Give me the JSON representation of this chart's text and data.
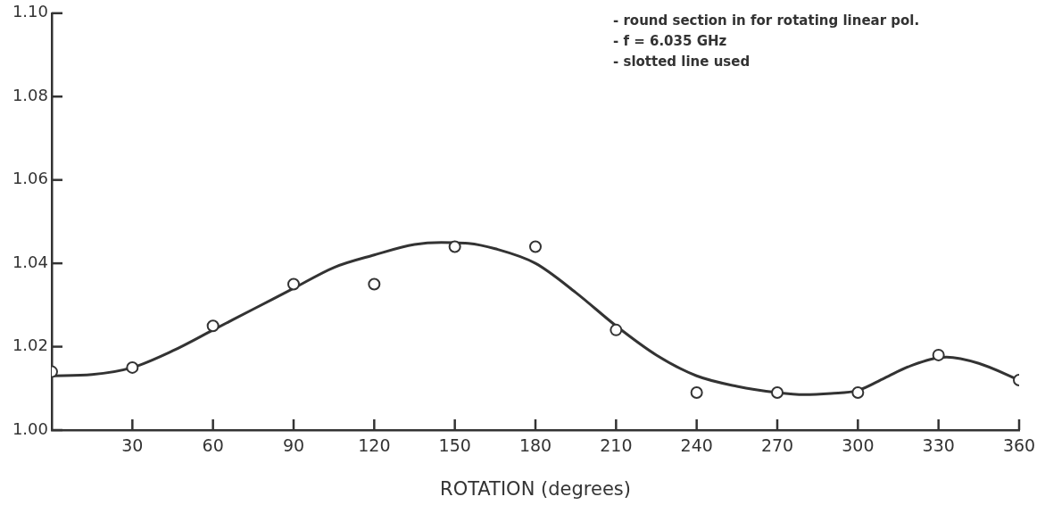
{
  "chart_data": {
    "type": "scatter",
    "xlabel": "ROTATION (degrees)",
    "annotations": [
      "- round section in for rotating linear pol.",
      "- f = 6.035 GHz",
      "- slotted line used"
    ],
    "xlim": [
      0,
      360
    ],
    "xticks": [
      30,
      60,
      90,
      120,
      150,
      180,
      210,
      240,
      270,
      300,
      330,
      360
    ],
    "ylim": [
      1.0,
      1.1
    ],
    "yticks": [
      {
        "value": 1.0,
        "label": "1.00"
      },
      {
        "value": 1.02,
        "label": "1.02"
      },
      {
        "value": 1.04,
        "label": "1.04"
      },
      {
        "value": 1.06,
        "label": "1.06"
      },
      {
        "value": 1.08,
        "label": "1.08"
      },
      {
        "value": 1.1,
        "label": "1.10"
      }
    ],
    "grid": false,
    "legend": false,
    "series": [
      {
        "type": "scatter",
        "marker": "circle",
        "color": "#333333",
        "x": [
          0,
          30,
          60,
          90,
          120,
          150,
          180,
          210,
          240,
          270,
          300,
          330,
          360
        ],
        "values": [
          1.014,
          1.015,
          1.025,
          1.035,
          1.035,
          1.044,
          1.044,
          1.024,
          1.009,
          1.009,
          1.009,
          1.018,
          1.012
        ]
      },
      {
        "type": "line",
        "marker": "none",
        "line_style": "solid",
        "color": "#333333",
        "x": [
          0,
          15,
          30,
          45,
          60,
          75,
          90,
          105,
          120,
          135,
          145,
          155,
          165,
          180,
          195,
          210,
          225,
          240,
          255,
          270,
          280,
          290,
          300,
          310,
          320,
          333,
          345,
          360
        ],
        "values": [
          1.013,
          1.0133,
          1.015,
          1.019,
          1.024,
          1.029,
          1.034,
          1.039,
          1.042,
          1.0445,
          1.045,
          1.0448,
          1.0435,
          1.04,
          1.033,
          1.025,
          1.018,
          1.013,
          1.0105,
          1.009,
          1.0085,
          1.0088,
          1.0095,
          1.0125,
          1.0155,
          1.0175,
          1.016,
          1.012
        ]
      }
    ]
  }
}
